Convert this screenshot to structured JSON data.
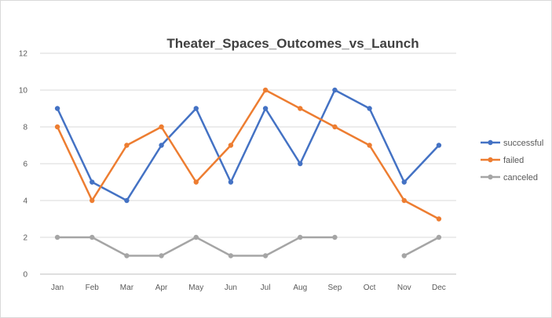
{
  "chart_data": {
    "type": "line",
    "title": "Theater_Spaces_Outcomes_vs_Launch",
    "xlabel": "",
    "ylabel": "",
    "categories": [
      "Jan",
      "Feb",
      "Mar",
      "Apr",
      "May",
      "Jun",
      "Jul",
      "Aug",
      "Sep",
      "Oct",
      "Nov",
      "Dec"
    ],
    "ylim": [
      0,
      12
    ],
    "yticks": [
      "0",
      "2",
      "4",
      "6",
      "8",
      "10",
      "12"
    ],
    "grid": true,
    "legend_position": "right",
    "series": [
      {
        "name": "successful",
        "color": "#4472c4",
        "values": [
          9,
          5,
          4,
          7,
          9,
          5,
          9,
          6,
          10,
          9,
          5,
          7
        ]
      },
      {
        "name": "failed",
        "color": "#ed7d31",
        "values": [
          8,
          4,
          7,
          8,
          5,
          7,
          10,
          9,
          8,
          7,
          4,
          3
        ]
      },
      {
        "name": "canceled",
        "color": "#a5a5a5",
        "values": [
          2,
          2,
          1,
          1,
          2,
          1,
          1,
          2,
          2,
          null,
          1,
          2
        ]
      }
    ]
  }
}
